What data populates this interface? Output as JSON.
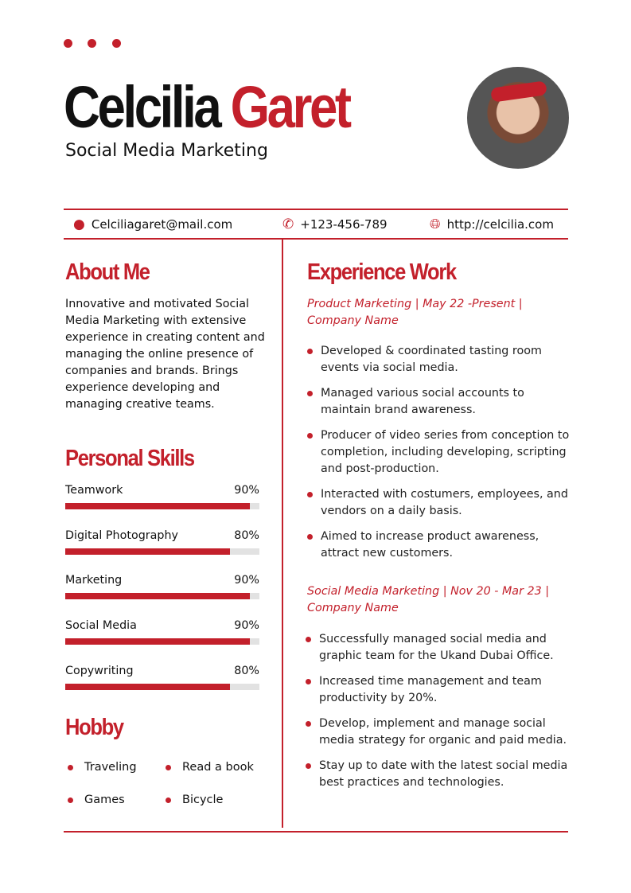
{
  "header": {
    "first_name": "Celcilia",
    "last_name": "Garet",
    "role": "Social Media Marketing"
  },
  "contact": {
    "email": "Celciliagaret@mail.com",
    "phone": "+123-456-789",
    "website": "http://celcilia.com"
  },
  "about": {
    "title": "About Me",
    "text": "Innovative and motivated Social Media Marketing with extensive experience in creating content and managing the online presence of companies and brands. Brings experience developing and managing creative teams."
  },
  "skills": {
    "title": "Personal Skills",
    "items": [
      {
        "label": "Teamwork",
        "value": "90%",
        "level": 90
      },
      {
        "label": "Digital Photography",
        "value": "80%",
        "level": 80
      },
      {
        "label": "Marketing",
        "value": "90%",
        "level": 90
      },
      {
        "label": "Social Media",
        "value": "90%",
        "level": 90
      },
      {
        "label": "Copywriting",
        "value": "80%",
        "level": 80
      }
    ]
  },
  "hobby": {
    "title": "Hobby",
    "items": [
      "Traveling",
      "Read a book",
      "Games",
      "Bicycle"
    ]
  },
  "experience": {
    "title": "Experience Work",
    "jobs": [
      {
        "heading": "Product Marketing | May 22 -Present | Company Name",
        "bullets": [
          "Developed & coordinated tasting room events via social media.",
          "Managed various social accounts to maintain brand awareness.",
          "Producer of video series from conception to completion, including developing, scripting and post-production.",
          "Interacted with costumers, employees, and vendors on a daily basis.",
          "Aimed to increase product awareness, attract new customers."
        ]
      },
      {
        "heading": "Social Media Marketing | Nov 20 - Mar 23 | Company Name",
        "bullets": [
          "Successfully managed social media and graphic team for the Ukand Dubai Office.",
          "Increased time management and team productivity by 20%.",
          "Develop, implement and manage social media strategy for organic and paid media.",
          "Stay up to date with the latest social media best practices and technologies."
        ]
      }
    ]
  },
  "colors": {
    "accent": "#c3202b",
    "bar_track": "#e2e2e2"
  }
}
